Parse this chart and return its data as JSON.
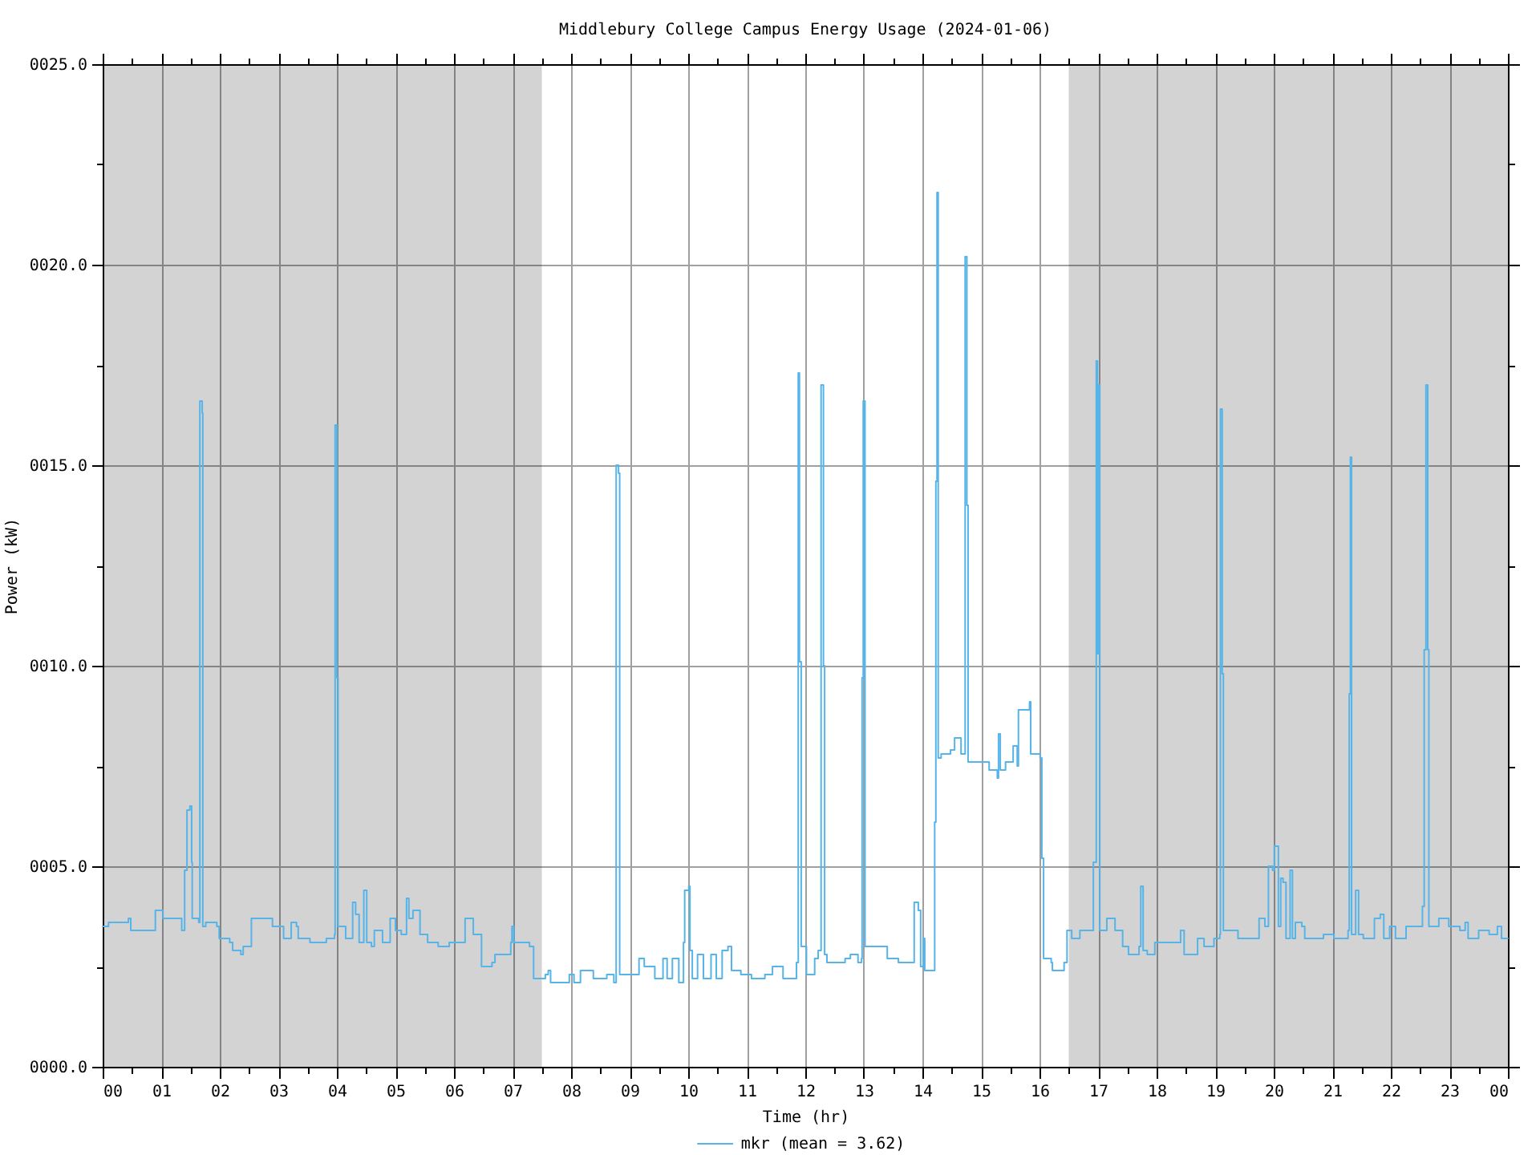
{
  "chart_data": {
    "type": "step",
    "title": "Middlebury College Campus Energy Usage (2024-01-06)",
    "xlabel": "Time (hr)",
    "ylabel": "Power (kW)",
    "x": [
      0,
      0.1,
      0.44,
      0.48,
      0.8,
      0.9,
      1.03,
      1.35,
      1.4,
      1.44,
      1.49,
      1.52,
      1.53,
      1.64,
      1.66,
      1.7,
      1.71,
      1.76,
      1.95,
      1.99,
      2.17,
      2.22,
      2.36,
      2.4,
      2.54,
      2.81,
      2.9,
      3.05,
      3.09,
      3.22,
      3.31,
      3.34,
      3.54,
      3.82,
      3.96,
      3.97,
      4.0,
      4.02,
      4.15,
      4.27,
      4.32,
      4.38,
      4.46,
      4.51,
      4.59,
      4.64,
      4.78,
      4.91,
      5.0,
      5.1,
      5.19,
      5.23,
      5.3,
      5.42,
      5.55,
      5.73,
      5.92,
      6.0,
      6.19,
      6.33,
      6.47,
      6.65,
      6.7,
      6.88,
      6.97,
      6.99,
      7.02,
      7.29,
      7.36,
      7.56,
      7.61,
      7.65,
      7.79,
      7.97,
      8.05,
      8.16,
      8.38,
      8.61,
      8.73,
      8.77,
      8.81,
      8.83,
      9.02,
      9.16,
      9.25,
      9.43,
      9.57,
      9.64,
      9.73,
      9.84,
      9.92,
      9.94,
      10.01,
      10.03,
      10.07,
      10.16,
      10.26,
      10.39,
      10.48,
      10.58,
      10.68,
      10.74,
      10.9,
      11.08,
      11.31,
      11.44,
      11.62,
      11.76,
      11.85,
      11.88,
      11.9,
      11.93,
      12.02,
      12.16,
      12.22,
      12.27,
      12.31,
      12.33,
      12.37,
      12.68,
      12.77,
      12.9,
      12.96,
      12.97,
      12.99,
      13.02,
      13.27,
      13.4,
      13.59,
      13.79,
      13.86,
      13.93,
      13.97,
      14.02,
      14.04,
      14.2,
      14.21,
      14.23,
      14.25,
      14.27,
      14.32,
      14.48,
      14.55,
      14.66,
      14.71,
      14.73,
      14.76,
      14.78,
      15.0,
      15.14,
      15.28,
      15.3,
      15.33,
      15.42,
      15.55,
      15.62,
      15.64,
      15.78,
      15.83,
      15.85,
      16.01,
      16.04,
      16.07,
      16.2,
      16.22,
      16.34,
      16.42,
      16.47,
      16.55,
      16.69,
      16.88,
      16.92,
      16.97,
      16.99,
      17.01,
      17.03,
      17.15,
      17.29,
      17.42,
      17.52,
      17.7,
      17.73,
      17.77,
      17.84,
      17.97,
      18.25,
      18.41,
      18.47,
      18.61,
      18.7,
      18.81,
      18.98,
      19.08,
      19.09,
      19.12,
      19.14,
      19.39,
      19.62,
      19.75,
      19.85,
      19.91,
      19.98,
      20.01,
      20.08,
      20.12,
      20.16,
      20.21,
      20.28,
      20.32,
      20.37,
      20.48,
      20.53,
      20.85,
      21.03,
      21.21,
      21.27,
      21.29,
      21.31,
      21.33,
      21.4,
      21.45,
      21.53,
      21.72,
      21.82,
      21.88,
      21.98,
      22.08,
      22.26,
      22.45,
      22.54,
      22.57,
      22.6,
      22.63,
      22.65,
      22.82,
      22.99,
      23.18,
      23.27,
      23.32,
      23.5,
      23.68,
      23.82,
      23.89,
      24
    ],
    "series": [
      {
        "name": "mkr (mean = 3.62)",
        "color": "#56b4e9",
        "values": [
          3.5,
          3.6,
          3.7,
          3.4,
          3.4,
          3.9,
          3.7,
          3.4,
          4.9,
          6.4,
          6.5,
          5.1,
          3.7,
          3.6,
          16.6,
          16.3,
          3.5,
          3.6,
          3.5,
          3.2,
          3.1,
          2.9,
          2.8,
          3.0,
          3.7,
          3.7,
          3.5,
          3.5,
          3.2,
          3.6,
          3.5,
          3.2,
          3.1,
          3.2,
          3.3,
          16.0,
          9.7,
          3.5,
          3.2,
          4.1,
          3.8,
          3.1,
          4.4,
          3.1,
          3.0,
          3.4,
          3.1,
          3.7,
          3.4,
          3.3,
          4.2,
          3.7,
          3.9,
          3.3,
          3.1,
          3.0,
          3.1,
          3.1,
          3.7,
          3.3,
          2.5,
          2.6,
          2.8,
          2.8,
          3.1,
          3.5,
          3.1,
          3.0,
          2.2,
          2.3,
          2.4,
          2.1,
          2.1,
          2.3,
          2.1,
          2.4,
          2.2,
          2.3,
          2.1,
          15.0,
          14.8,
          2.3,
          2.3,
          2.7,
          2.5,
          2.2,
          2.7,
          2.2,
          2.7,
          2.1,
          3.1,
          4.4,
          4.5,
          2.9,
          2.2,
          2.8,
          2.2,
          2.8,
          2.2,
          2.9,
          3.0,
          2.4,
          2.3,
          2.2,
          2.3,
          2.5,
          2.2,
          2.2,
          2.6,
          17.3,
          10.1,
          3.0,
          2.3,
          2.7,
          2.9,
          17.0,
          10.0,
          2.8,
          2.6,
          2.7,
          2.8,
          2.6,
          2.7,
          9.7,
          16.6,
          3.0,
          3.0,
          2.7,
          2.6,
          2.6,
          4.1,
          3.9,
          2.5,
          3.2,
          2.4,
          2.4,
          6.1,
          14.6,
          21.8,
          7.7,
          7.8,
          7.9,
          8.2,
          7.8,
          7.8,
          20.2,
          14.0,
          7.6,
          7.6,
          7.4,
          7.2,
          8.3,
          7.4,
          7.6,
          8.0,
          7.5,
          8.9,
          8.9,
          9.1,
          7.8,
          7.7,
          5.2,
          2.7,
          2.6,
          2.4,
          2.4,
          2.6,
          3.4,
          3.2,
          3.4,
          3.4,
          5.1,
          17.6,
          10.3,
          17.0,
          3.4,
          3.7,
          3.4,
          3.0,
          2.8,
          3.0,
          4.5,
          2.9,
          2.8,
          3.1,
          3.1,
          3.4,
          2.8,
          2.8,
          3.2,
          3.0,
          3.2,
          3.3,
          16.4,
          9.8,
          3.4,
          3.2,
          3.2,
          3.7,
          3.5,
          5.0,
          4.9,
          5.5,
          3.5,
          4.7,
          4.6,
          3.2,
          4.9,
          3.2,
          3.6,
          3.5,
          3.2,
          3.3,
          3.2,
          3.2,
          3.4,
          9.3,
          15.2,
          3.3,
          4.4,
          3.3,
          3.2,
          3.7,
          3.8,
          3.2,
          3.5,
          3.2,
          3.5,
          3.5,
          4.0,
          10.4,
          17.0,
          10.4,
          3.5,
          3.7,
          3.5,
          3.4,
          3.6,
          3.2,
          3.4,
          3.3,
          3.5,
          3.2,
          3.2
        ]
      }
    ],
    "xlim": [
      0,
      24
    ],
    "ylim": [
      0,
      25
    ],
    "xticks": [
      {
        "value": 0,
        "label": "00"
      },
      {
        "value": 0.5,
        "label": null
      },
      {
        "value": 1,
        "label": "01"
      },
      {
        "value": 1.5,
        "label": null
      },
      {
        "value": 2,
        "label": "02"
      },
      {
        "value": 2.5,
        "label": null
      },
      {
        "value": 3,
        "label": "03"
      },
      {
        "value": 3.5,
        "label": null
      },
      {
        "value": 4,
        "label": "04"
      },
      {
        "value": 4.5,
        "label": null
      },
      {
        "value": 5,
        "label": "05"
      },
      {
        "value": 5.5,
        "label": null
      },
      {
        "value": 6,
        "label": "06"
      },
      {
        "value": 6.5,
        "label": null
      },
      {
        "value": 7,
        "label": "07"
      },
      {
        "value": 7.5,
        "label": null
      },
      {
        "value": 8,
        "label": "08"
      },
      {
        "value": 8.5,
        "label": null
      },
      {
        "value": 9,
        "label": "09"
      },
      {
        "value": 9.5,
        "label": null
      },
      {
        "value": 10,
        "label": "10"
      },
      {
        "value": 10.5,
        "label": null
      },
      {
        "value": 11,
        "label": "11"
      },
      {
        "value": 11.5,
        "label": null
      },
      {
        "value": 12,
        "label": "12"
      },
      {
        "value": 12.5,
        "label": null
      },
      {
        "value": 13,
        "label": "13"
      },
      {
        "value": 13.5,
        "label": null
      },
      {
        "value": 14,
        "label": "14"
      },
      {
        "value": 14.5,
        "label": null
      },
      {
        "value": 15,
        "label": "15"
      },
      {
        "value": 15.5,
        "label": null
      },
      {
        "value": 16,
        "label": "16"
      },
      {
        "value": 16.5,
        "label": null
      },
      {
        "value": 17,
        "label": "17"
      },
      {
        "value": 17.5,
        "label": null
      },
      {
        "value": 18,
        "label": "18"
      },
      {
        "value": 18.5,
        "label": null
      },
      {
        "value": 19,
        "label": "19"
      },
      {
        "value": 19.5,
        "label": null
      },
      {
        "value": 20,
        "label": "20"
      },
      {
        "value": 20.5,
        "label": null
      },
      {
        "value": 21,
        "label": "21"
      },
      {
        "value": 21.5,
        "label": null
      },
      {
        "value": 22,
        "label": "22"
      },
      {
        "value": 22.5,
        "label": null
      },
      {
        "value": 23,
        "label": "23"
      },
      {
        "value": 23.5,
        "label": null
      },
      {
        "value": 24,
        "label": "00"
      }
    ],
    "yticks": [
      {
        "value": 0,
        "label": "0000.0"
      },
      {
        "value": 2.5,
        "label": null
      },
      {
        "value": 5,
        "label": "0005.0"
      },
      {
        "value": 7.5,
        "label": null
      },
      {
        "value": 10,
        "label": "0010.0"
      },
      {
        "value": 12.5,
        "label": null
      },
      {
        "value": 15,
        "label": "0015.0"
      },
      {
        "value": 17.5,
        "label": null
      },
      {
        "value": 20,
        "label": "0020.0"
      },
      {
        "value": 22.5,
        "label": null
      },
      {
        "value": 25,
        "label": "0025.0"
      }
    ],
    "bands": [
      {
        "axis": "x",
        "from": 0,
        "to": 7.5,
        "color": "#d3d3d3"
      },
      {
        "axis": "x",
        "from": 16.5,
        "to": 24,
        "color": "#d3d3d3"
      }
    ],
    "grid": true,
    "legend": "bottom"
  }
}
